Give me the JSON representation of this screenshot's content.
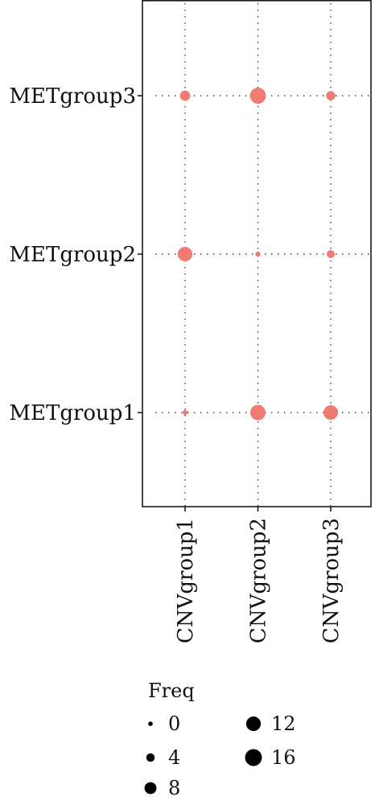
{
  "chart_data": {
    "type": "scatter",
    "subtype": "balloon",
    "title": "",
    "xlabel": "",
    "ylabel": "",
    "x_categories": [
      "CNVgroup1",
      "CNVgroup2",
      "CNVgroup3"
    ],
    "y_categories": [
      "METgroup1",
      "METgroup2",
      "METgroup3"
    ],
    "points": [
      {
        "x": "CNVgroup1",
        "y": "METgroup1",
        "freq": 1
      },
      {
        "x": "CNVgroup2",
        "y": "METgroup1",
        "freq": 11
      },
      {
        "x": "CNVgroup3",
        "y": "METgroup1",
        "freq": 10
      },
      {
        "x": "CNVgroup1",
        "y": "METgroup2",
        "freq": 10
      },
      {
        "x": "CNVgroup2",
        "y": "METgroup2",
        "freq": 1
      },
      {
        "x": "CNVgroup3",
        "y": "METgroup2",
        "freq": 3
      },
      {
        "x": "CNVgroup1",
        "y": "METgroup3",
        "freq": 5
      },
      {
        "x": "CNVgroup2",
        "y": "METgroup3",
        "freq": 12
      },
      {
        "x": "CNVgroup3",
        "y": "METgroup3",
        "freq": 4
      }
    ],
    "size_range": [
      0,
      16
    ],
    "point_color": "#F07B72",
    "grid": "dotted",
    "legend": {
      "title": "Freq",
      "position": "bottom",
      "entries": [
        0,
        4,
        8,
        12,
        16
      ],
      "labels": [
        "0",
        "4",
        "8",
        "12",
        "16"
      ],
      "color": "#000000"
    }
  }
}
